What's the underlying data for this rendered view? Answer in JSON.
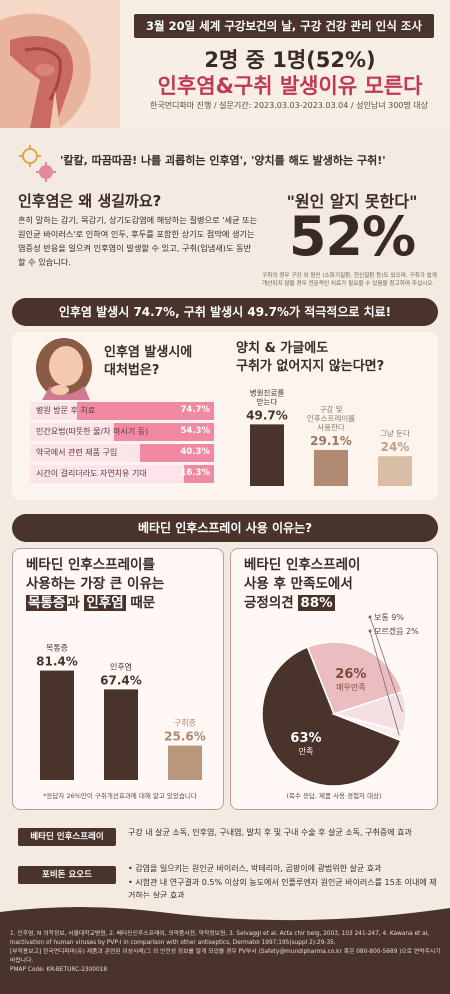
{
  "header": {
    "top_banner": "3월 20일 세계 구강보건의 날, 구강 건강 관리 인식 조사",
    "title_line1": "2명 중 1명(52%)",
    "title_line2": "인후염&구취 발생이유 모른다",
    "subtitle": "한국먼디파마 진행 / 설문기간: 2023.03.03-2023.03.04 / 성인남녀 300명 대상"
  },
  "quote_bar": {
    "text": "'칼칼, 따끔따끔! 나를 괴롭히는 인후염', '양치를 해도 발생하는 구취!'"
  },
  "why": {
    "title": "인후염은 왜 생길까요?",
    "body": "흔히 말하는 감기, 목감기, 상기도감염에 해당하는 질병으로 '세균 또는 원인균 바이러스'로 인하여 인두, 후두를 포함한 상기도 점막에 생기는 염증성 반응을 일으켜 인후염이 발생할 수 있고, 구취(입냄새)도 동반할 수 있습니다.",
    "quote": "\"원인 알지 못한다\"",
    "percent": "52%",
    "note": "구취의 경우 구강 외 원인 (소화기질환, 전신질환 등)도 있으며, 구취가 쉽게 개선되지 않을 경우 전문적인 치료가 필요할 수 있음을 참고하여 주십시오."
  },
  "bar1": "인후염 발생시 74.7%, 구취 발생시 49.7%가 적극적으로 치료!",
  "bar2": "베타딘 인후스프레이 사용 이유는?",
  "chart_data": [
    {
      "type": "bar",
      "orientation": "horizontal",
      "title": "인후염 발생시에 대처법은?",
      "categories": [
        "병원 방문 후 치료",
        "민간요법(따뜻한 물/차 마시기 등)",
        "약국에서 관련 제품 구입",
        "시간이 걸리더라도 자연치유 기대"
      ],
      "values": [
        74.7,
        54.3,
        40.3,
        16.3
      ],
      "value_labels": [
        "74.7%",
        "54.3%",
        "40.3%",
        "16.3%"
      ],
      "xlim": [
        0,
        100
      ]
    },
    {
      "type": "bar",
      "title": "양치 & 가글에도 구취가 없어지지 않는다면?",
      "categories": [
        "병원진료를 받는다",
        "구강 및 인후스프레이를 사용한다",
        "그냥 둔다"
      ],
      "values": [
        49.7,
        29.1,
        24
      ],
      "value_labels": [
        "49.7%",
        "29.1%",
        "24%"
      ],
      "ylim": [
        0,
        60
      ]
    },
    {
      "type": "bar",
      "title": "베타딘 인후스프레이를 사용하는 가장 큰 이유는 목통증과 인후염 때문",
      "categories": [
        "목통증",
        "인후염",
        "구취증"
      ],
      "values": [
        81.4,
        67.4,
        25.6
      ],
      "value_labels": [
        "81.4%",
        "67.4%",
        "25.6%"
      ],
      "ylim": [
        0,
        100
      ],
      "note": "*응답자 26%만이 구취개선효과에 대해 알고 있었습니다"
    },
    {
      "type": "pie",
      "title": "베타딘 인후스프레이 사용 후 만족도에서 긍정의견 88%",
      "categories": [
        "만족",
        "매우만족",
        "보통",
        "모르겠음"
      ],
      "values": [
        63,
        26,
        9,
        2
      ],
      "value_labels": [
        "63%",
        "26%",
        "9%",
        "2%"
      ],
      "note": "(복수 응답, 제품 사용 경험자 대상)"
    }
  ],
  "chart_titles": {
    "c1": [
      "인후염 발생시에",
      "대처법은?"
    ],
    "c2": [
      "양치 & 가글에도",
      "구취가 없어지지 않는다면?"
    ],
    "c3_l1": "베타딘 인후스프레이를",
    "c3_l2": "사용하는 가장 큰 이유는",
    "c3_hl1": "목통증",
    "c3_mid": "과 ",
    "c3_hl2": "인후염",
    "c3_end": " 때문",
    "c4_l1": "베타딘 인후스프레이",
    "c4_l2": "사용 후 만족도에서",
    "c4_l3": "긍정의견 ",
    "c4_hl": "88%"
  },
  "c2_cat_lines": [
    [
      "병원진료를",
      "받는다"
    ],
    [
      "구강 및",
      "인후스프레이를",
      "사용한다"
    ],
    [
      "그냥 둔다"
    ]
  ],
  "info": {
    "label1": "베타딘 인후스프레이",
    "text1": "구강 내 살균 소독, 인후염, 구내염, 발치 후 및 구내 수술 후 살균 소독, 구취증에 효과",
    "label2": "포비돈 요오드",
    "text2a": "• 감염을 일으키는 원인균 바이러스, 박테리아, 곰팡이에 광범위한 살균 효과",
    "text2b": "• 시험관 내 연구결과 0.5% 이상의 농도에서 인플루엔자 원인균 바이러스를 15초 이내에 제거하는 살균 효과"
  },
  "footer": {
    "refs": "1. 인후염, N 의학정보, 서울대학교병원, 2. 베타딘인후스프레이, 의약품사전, 약학정보원, 3. Selvaggi et al, Acta chir belg, 2003, 103 241-247, 4. Kawana et al, Inactivation of human viruses by PVP-I in comparison with other antiseptics, Dermatol 1997;195(suppl 2):29-35.",
    "contact": "[부작용보고] 한국먼디파마(유) 제품과 관련된 이상사례/그 외 안전성 정보를 알게 되었을 경우 PV부서 (Safety@mundipharma.co.kr 혹은 080-800-5689 )으로 연락주시기 바랍니다.",
    "code": "PMAP Code: KR-BETURC-2300018"
  },
  "colors": {
    "dark": "#4a332b",
    "pink": "#f08aa3",
    "tan": "#b08a72",
    "light_tan": "#d9bda4",
    "red": "#c13a52"
  }
}
